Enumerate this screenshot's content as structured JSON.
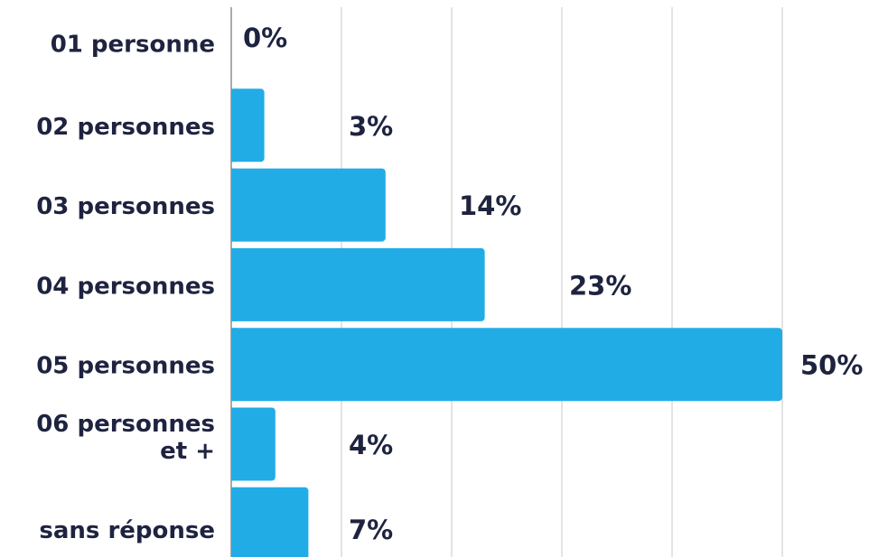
{
  "chart_data": {
    "type": "bar",
    "orientation": "horizontal",
    "categories": [
      [
        "01 personne"
      ],
      [
        "02 personnes"
      ],
      [
        "03 personnes"
      ],
      [
        "04 personnes"
      ],
      [
        "05 personnes"
      ],
      [
        "06 personnes",
        "et +"
      ],
      [
        "sans réponse"
      ]
    ],
    "values": [
      0,
      3,
      14,
      23,
      50,
      4,
      7
    ],
    "value_labels": [
      "0%",
      "3%",
      "14%",
      "23%",
      "50%",
      "4%",
      "7%"
    ],
    "xlim": [
      0,
      50
    ],
    "grid": true,
    "bar_color": "#22ace6",
    "grid_color": "#c8c8c8",
    "text_color": "#1e2340"
  }
}
